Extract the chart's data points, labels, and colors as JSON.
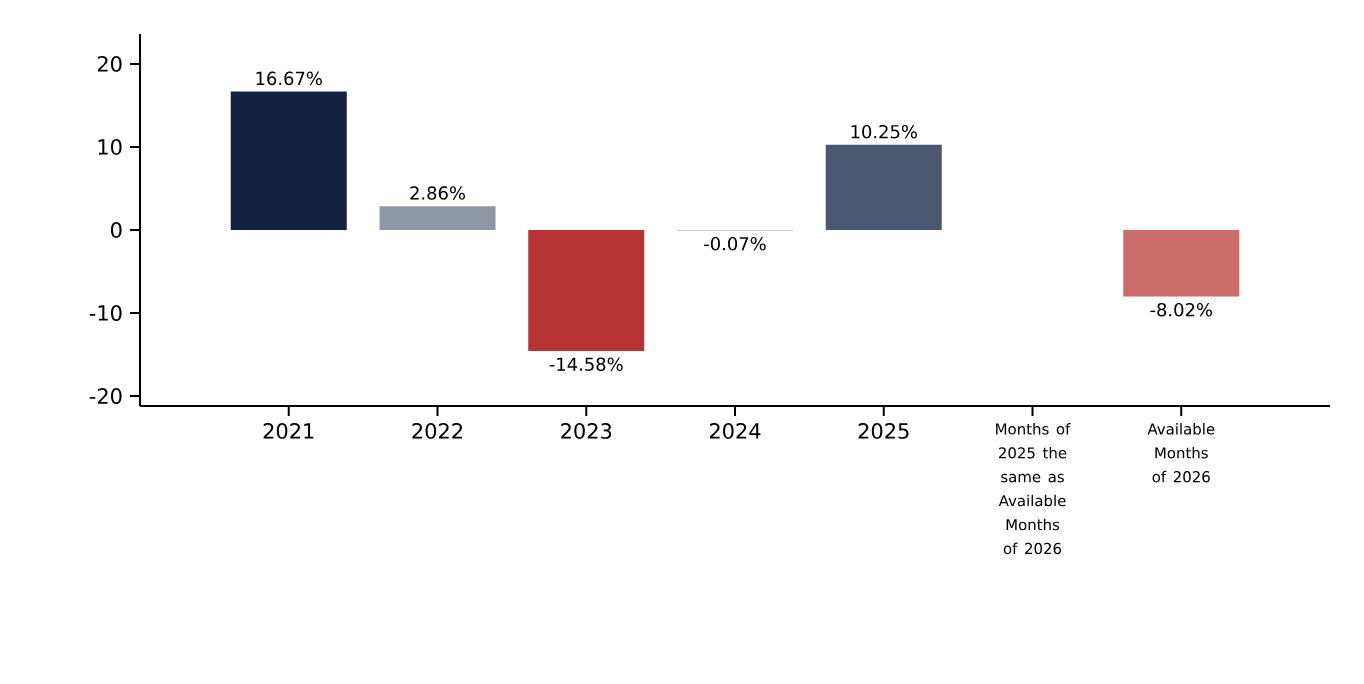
{
  "chart_data": {
    "type": "bar",
    "categories": [
      "2021",
      "2022",
      "2023",
      "2024",
      "2025",
      "Months of 2025 the same as Available Months of 2026",
      "Available Months of 2026"
    ],
    "values": [
      16.67,
      2.86,
      -14.58,
      -0.07,
      10.25,
      null,
      -8.02
    ],
    "colors": [
      "#13203f",
      "#9097a4",
      "#b83434",
      "#9097a4",
      "#4b5670",
      null,
      "#cc6d6b"
    ],
    "value_labels": [
      "16.67%",
      "2.86%",
      "-14.58%",
      "-0.07%",
      "10.25%",
      null,
      "-8.02%"
    ],
    "ylim": [
      -21.2,
      23.6
    ],
    "yticks": [
      -20,
      -10,
      0,
      10,
      20
    ]
  }
}
